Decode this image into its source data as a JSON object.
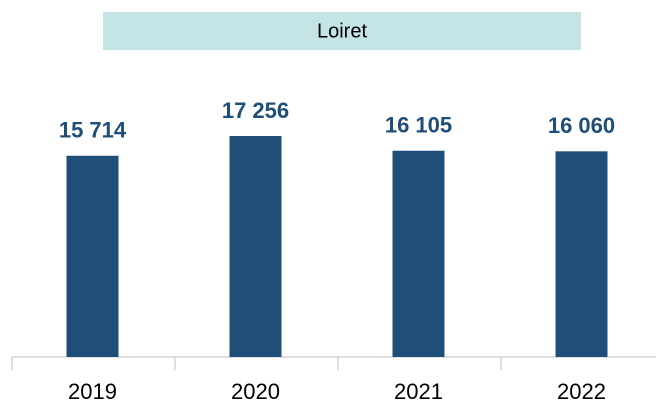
{
  "chart_data": {
    "type": "bar",
    "title": "Loiret",
    "categories": [
      "2019",
      "2020",
      "2021",
      "2022"
    ],
    "values": [
      15714,
      17256,
      16105,
      16060
    ],
    "value_labels": [
      "15 714",
      "17 256",
      "16 105",
      "16 060"
    ],
    "color": "#1f4e79",
    "title_background": "#c5e4e6"
  }
}
